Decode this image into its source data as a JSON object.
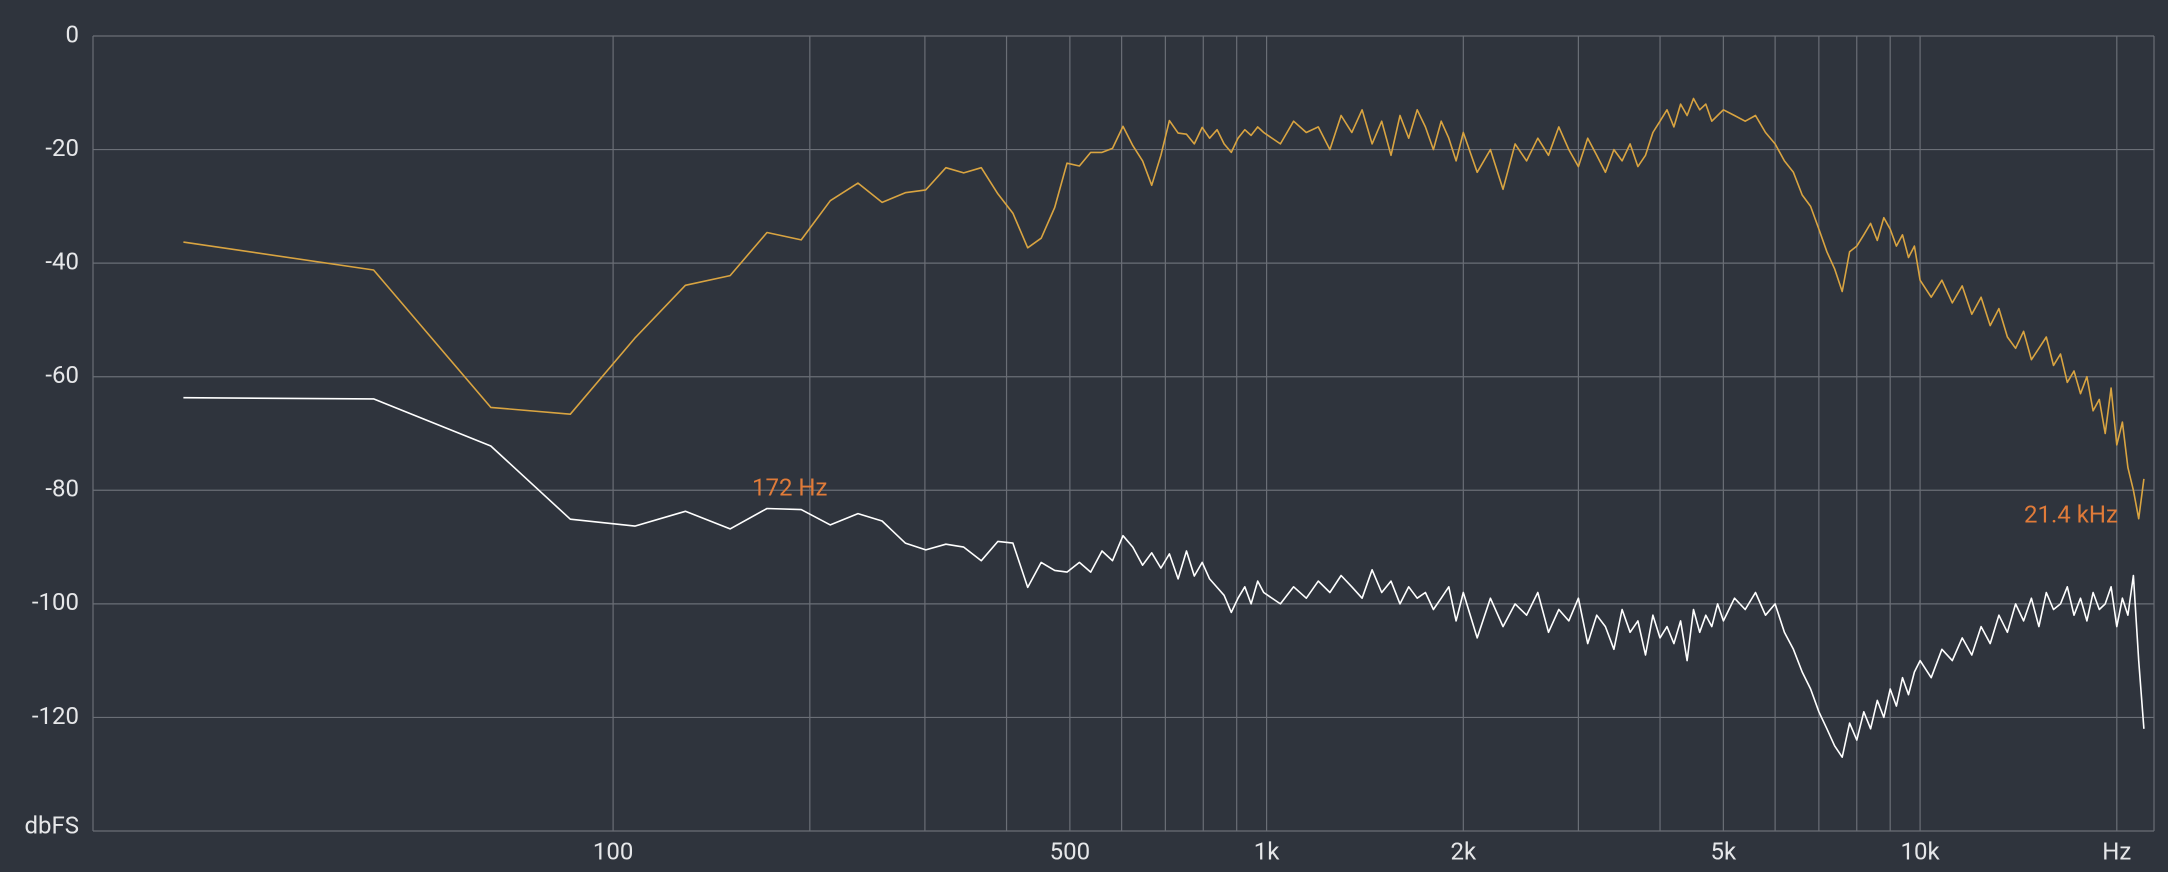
{
  "chart_data": {
    "type": "line",
    "xscale": "log",
    "grid": true,
    "background": "#2f343d",
    "xlim": [
      16,
      22800
    ],
    "ylim": [
      -140,
      0
    ],
    "xticks": [
      100,
      500,
      {
        "value": 1000,
        "label": "1k"
      },
      {
        "value": 2000,
        "label": "2k"
      },
      {
        "value": 5000,
        "label": "5k"
      },
      {
        "value": 10000,
        "label": "10k"
      },
      {
        "value": 20000,
        "label": "Hz"
      }
    ],
    "xminorticks": [
      200,
      300,
      400,
      600,
      700,
      800,
      900,
      3000,
      4000,
      6000,
      7000,
      8000,
      9000
    ],
    "yticks": [
      0,
      -20,
      -40,
      -60,
      -80,
      -100,
      -120,
      {
        "value": -140,
        "label": "dbFS"
      }
    ],
    "annotations": [
      {
        "text": "172 Hz",
        "color": "#e07b39"
      },
      {
        "text": "21.4  kHz",
        "color": "#e07b39"
      }
    ],
    "x": [
      22,
      43,
      65,
      86,
      108,
      129,
      151,
      172,
      194,
      215,
      237,
      258,
      280,
      301,
      323,
      344,
      366,
      388,
      409,
      431,
      452,
      474,
      495,
      517,
      538,
      560,
      581,
      603,
      624,
      646,
      667,
      689,
      710,
      732,
      754,
      775,
      797,
      818,
      840,
      861,
      883,
      904,
      926,
      947,
      969,
      990,
      1050,
      1100,
      1150,
      1200,
      1250,
      1300,
      1350,
      1400,
      1450,
      1500,
      1550,
      1600,
      1650,
      1700,
      1750,
      1800,
      1850,
      1900,
      1950,
      2000,
      2100,
      2200,
      2300,
      2400,
      2500,
      2600,
      2700,
      2800,
      2900,
      3000,
      3100,
      3200,
      3300,
      3400,
      3500,
      3600,
      3700,
      3800,
      3900,
      4000,
      4100,
      4200,
      4300,
      4400,
      4500,
      4600,
      4700,
      4800,
      4900,
      5000,
      5200,
      5400,
      5600,
      5800,
      6000,
      6200,
      6400,
      6600,
      6800,
      7000,
      7200,
      7400,
      7600,
      7800,
      8000,
      8200,
      8400,
      8600,
      8800,
      9000,
      9200,
      9400,
      9600,
      9800,
      10000,
      10400,
      10800,
      11200,
      11600,
      12000,
      12400,
      12800,
      13200,
      13600,
      14000,
      14400,
      14800,
      15200,
      15600,
      16000,
      16400,
      16800,
      17200,
      17600,
      18000,
      18400,
      18800,
      19200,
      19600,
      20000,
      20400,
      20800,
      21200,
      21600,
      22000
    ],
    "series": [
      {
        "color": "#d9a441",
        "values": [
          -36.3,
          -41.2,
          -65.4,
          -66.6,
          -53.2,
          -43.9,
          -42.2,
          -34.6,
          -35.9,
          -29.0,
          -25.9,
          -29.3,
          -27.6,
          -27.1,
          -23.2,
          -24.1,
          -23.2,
          -27.8,
          -31.2,
          -37.3,
          -35.6,
          -30.2,
          -22.4,
          -22.9,
          -20.5,
          -20.5,
          -19.8,
          -15.9,
          -19.3,
          -22.0,
          -26.3,
          -21.0,
          -14.9,
          -17.1,
          -17.3,
          -19.0,
          -16.1,
          -18,
          -16.5,
          -19,
          -20.5,
          -18,
          -16.5,
          -17.5,
          -16,
          -17,
          -19,
          -15,
          -17,
          -16,
          -20,
          -14,
          -17,
          -13,
          -19,
          -15,
          -21,
          -14,
          -18,
          -13,
          -16,
          -20,
          -15,
          -18,
          -22,
          -17,
          -24,
          -20,
          -27,
          -19,
          -22,
          -18,
          -21,
          -16,
          -20,
          -23,
          -18,
          -21,
          -24,
          -20,
          -22,
          -19,
          -23,
          -21,
          -17,
          -15,
          -13,
          -16,
          -12,
          -14,
          -11,
          -13,
          -12,
          -15,
          -14,
          -13,
          -14,
          -15,
          -14,
          -17,
          -19,
          -22,
          -24,
          -28,
          -30,
          -34,
          -38,
          -41,
          -45,
          -38,
          -37,
          -35,
          -33,
          -36,
          -32,
          -34,
          -37,
          -35,
          -39,
          -37,
          -43,
          -46,
          -43,
          -47,
          -44,
          -49,
          -46,
          -51,
          -48,
          -53,
          -55,
          -52,
          -57,
          -55,
          -53,
          -58,
          -56,
          -61,
          -59,
          -63,
          -60,
          -66,
          -64,
          -70,
          -62,
          -72,
          -68,
          -76,
          -80,
          -85,
          -78
        ]
      },
      {
        "color": "#ffffff",
        "values": [
          -63.7,
          -63.9,
          -72.2,
          -85.1,
          -86.3,
          -83.7,
          -86.8,
          -83.2,
          -83.4,
          -86.1,
          -84.1,
          -85.4,
          -89.3,
          -90.5,
          -89.5,
          -90.0,
          -92.4,
          -89.0,
          -89.3,
          -97.1,
          -92.7,
          -94.1,
          -94.4,
          -92.7,
          -94.4,
          -90.7,
          -92.4,
          -88.0,
          -90.0,
          -93.2,
          -91.0,
          -93.7,
          -91.2,
          -95.6,
          -90.7,
          -95.1,
          -92.7,
          -95.6,
          -97.1,
          -98.5,
          -101.5,
          -99,
          -97,
          -100,
          -96,
          -98,
          -100,
          -97,
          -99,
          -96,
          -98,
          -95,
          -97,
          -99,
          -94,
          -98,
          -96,
          -100,
          -97,
          -99,
          -98,
          -101,
          -99,
          -97,
          -103,
          -98,
          -106,
          -99,
          -104,
          -100,
          -102,
          -98,
          -105,
          -101,
          -103,
          -99,
          -107,
          -102,
          -104,
          -108,
          -101,
          -105,
          -103,
          -109,
          -102,
          -106,
          -104,
          -107,
          -103,
          -110,
          -101,
          -105,
          -102,
          -104,
          -100,
          -103,
          -99,
          -101,
          -98,
          -102,
          -100,
          -105,
          -108,
          -112,
          -115,
          -119,
          -122,
          -125,
          -127,
          -121,
          -124,
          -119,
          -122,
          -117,
          -120,
          -115,
          -118,
          -113,
          -116,
          -112,
          -110,
          -113,
          -108,
          -110,
          -106,
          -109,
          -104,
          -107,
          -102,
          -105,
          -100,
          -103,
          -99,
          -104,
          -98,
          -101,
          -100,
          -97,
          -102,
          -99,
          -103,
          -98,
          -101,
          -100,
          -97,
          -104,
          -99,
          -102,
          -95,
          -110,
          -122
        ]
      }
    ]
  }
}
